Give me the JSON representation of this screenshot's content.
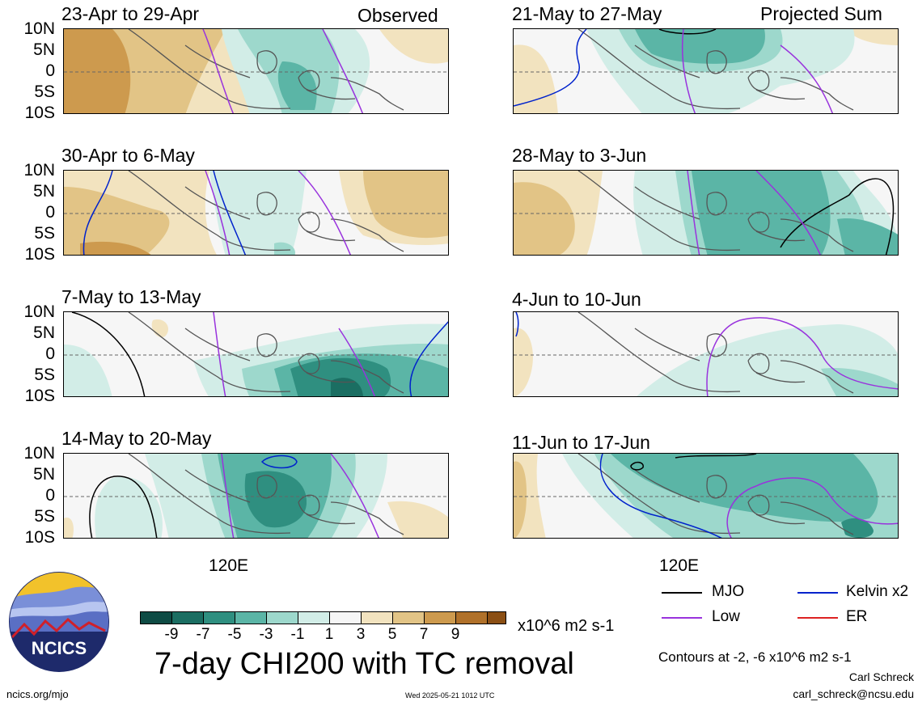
{
  "left_corner_label": "Observed",
  "right_corner_label": "Projected Sum",
  "lat_labels": [
    "10N",
    "5N",
    "0",
    "5S",
    "10S"
  ],
  "lon_label": "120E",
  "panels": [
    {
      "id": "p1",
      "title": "23-Apr to 29-Apr"
    },
    {
      "id": "p2",
      "title": "30-Apr to 6-May"
    },
    {
      "id": "p3",
      "title": "7-May to 13-May"
    },
    {
      "id": "p4",
      "title": "14-May to 20-May"
    },
    {
      "id": "p5",
      "title": "21-May to 27-May"
    },
    {
      "id": "p6",
      "title": "28-May to 3-Jun"
    },
    {
      "id": "p7",
      "title": "4-Jun to 10-Jun"
    },
    {
      "id": "p8",
      "title": "11-Jun to 17-Jun"
    }
  ],
  "colorbar": {
    "ticks": [
      "-9",
      "-7",
      "-5",
      "-3",
      "-1",
      "1",
      "3",
      "5",
      "7",
      "9"
    ],
    "units": "x10^6 m2 s-1",
    "colors": [
      "#0e4b44",
      "#1b6e62",
      "#2f8f80",
      "#5bb5a6",
      "#9dd8cc",
      "#d2ede7",
      "#f6f6f6",
      "#f2e3bf",
      "#e2c486",
      "#cd9a4e",
      "#b0712a",
      "#8b4f14",
      "#5b3408"
    ]
  },
  "main_title": "7-day CHI200 with TC removal",
  "legend": {
    "items": [
      {
        "label": "MJO",
        "color": "#000000"
      },
      {
        "label": "Kelvin x2",
        "color": "#0022cc"
      },
      {
        "label": "Low",
        "color": "#9933dd"
      },
      {
        "label": "ER",
        "color": "#dd2222"
      }
    ],
    "contour_note": "Contours at -2, -6 x10^6 m2 s-1"
  },
  "logo": {
    "text": "NCICS"
  },
  "footer": {
    "url": "ncics.org/mjo",
    "timestamp": "Wed 2025-05-21 1012 UTC",
    "author": "Carl Schreck",
    "email": "carl_schreck@ncsu.edu"
  }
}
